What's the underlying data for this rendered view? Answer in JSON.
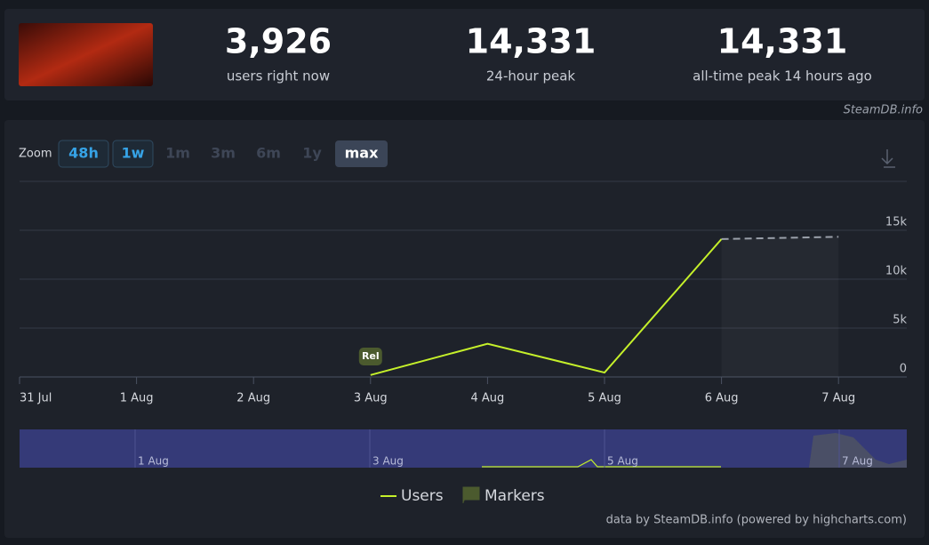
{
  "header": {
    "stats": [
      {
        "value": "3,926",
        "label": "users right now"
      },
      {
        "value": "14,331",
        "label": "24-hour peak"
      },
      {
        "value": "14,331",
        "label": "all-time peak 14 hours ago"
      }
    ],
    "brand": "SteamDB.info"
  },
  "zoom": {
    "label": "Zoom",
    "buttons": [
      "48h",
      "1w",
      "1m",
      "3m",
      "6m",
      "1y",
      "max"
    ]
  },
  "chart_data": {
    "type": "line",
    "categories": [
      "31 Jul",
      "1 Aug",
      "2 Aug",
      "3 Aug",
      "4 Aug",
      "5 Aug",
      "6 Aug",
      "7 Aug"
    ],
    "series": [
      {
        "name": "Users",
        "color": "#c5f02a",
        "values": [
          null,
          null,
          null,
          200,
          3400,
          450,
          14100,
          null
        ]
      },
      {
        "color": "#9aa0aa",
        "dashed": true,
        "values": [
          null,
          null,
          null,
          null,
          null,
          null,
          14100,
          14331
        ]
      }
    ],
    "ylim": [
      0,
      20000
    ],
    "yticks": [
      {
        "value": 0,
        "label": "0"
      },
      {
        "value": 5000,
        "label": "5k"
      },
      {
        "value": 10000,
        "label": "10k"
      },
      {
        "value": 15000,
        "label": "15k"
      }
    ],
    "grid": true,
    "markers": [
      {
        "label": "Rel",
        "category": 3
      }
    ],
    "legend": [
      "Users",
      "Markers"
    ],
    "navigator_labels": [
      "1 Aug",
      "3 Aug",
      "5 Aug",
      "7 Aug"
    ]
  },
  "footer": "data by SteamDB.info (powered by highcharts.com)"
}
